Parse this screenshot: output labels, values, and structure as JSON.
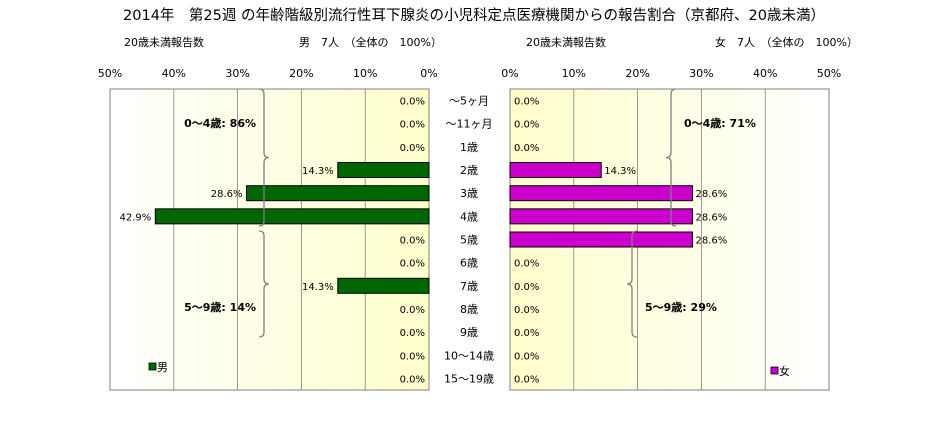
{
  "title": "2014年　第25週 の年齢階級別流行性耳下腺炎の小児科定点医療機関からの報告割合（京都府、20歳未満）",
  "chart_data": [
    {
      "type": "bar",
      "orientation": "horizontal",
      "direction": "right-to-left",
      "subtitle_left": "20歳未満報告数",
      "subtitle_right": "男　7人　（全体の　100%）",
      "xlim": [
        0,
        50
      ],
      "x_ticks": [
        "50%",
        "40%",
        "30%",
        "20%",
        "10%",
        "0%"
      ],
      "categories": [
        "～5ヶ月",
        "～11ヶ月",
        "1歳",
        "2歳",
        "3歳",
        "4歳",
        "5歳",
        "6歳",
        "7歳",
        "8歳",
        "9歳",
        "10～14歳",
        "15～19歳"
      ],
      "series": [
        {
          "name": "男",
          "color": "#006600",
          "values": [
            0,
            0,
            0,
            14.3,
            28.6,
            42.9,
            0,
            0,
            14.3,
            0,
            0,
            0,
            0
          ],
          "labels": [
            "0.0%",
            "0.0%",
            "0.0%",
            "14.3%",
            "28.6%",
            "42.9%",
            "0.0%",
            "0.0%",
            "14.3%",
            "0.0%",
            "0.0%",
            "0.0%",
            "0.0%"
          ]
        }
      ],
      "group_annotations": [
        "0～4歳: 86%",
        "5～9歳: 14%"
      ],
      "legend_position": "bottom-left"
    },
    {
      "type": "bar",
      "orientation": "horizontal",
      "direction": "left-to-right",
      "subtitle_left": "20歳未満報告数",
      "subtitle_right": "女　7人　（全体の　100%）",
      "xlim": [
        0,
        50
      ],
      "x_ticks": [
        "0%",
        "10%",
        "20%",
        "30%",
        "40%",
        "50%"
      ],
      "categories": [
        "～5ヶ月",
        "～11ヶ月",
        "1歳",
        "2歳",
        "3歳",
        "4歳",
        "5歳",
        "6歳",
        "7歳",
        "8歳",
        "9歳",
        "10～14歳",
        "15～19歳"
      ],
      "series": [
        {
          "name": "女",
          "color": "#CC00CC",
          "values": [
            0,
            0,
            0,
            14.3,
            28.6,
            28.6,
            28.6,
            0,
            0,
            0,
            0,
            0,
            0
          ],
          "labels": [
            "0.0%",
            "0.0%",
            "0.0%",
            "14.3%",
            "28.6%",
            "28.6%",
            "28.6%",
            "0.0%",
            "0.0%",
            "0.0%",
            "0.0%",
            "0.0%",
            "0.0%"
          ]
        }
      ],
      "group_annotations": [
        "0～4歳: 71%",
        "5～9歳: 29%"
      ],
      "legend_position": "bottom-right"
    }
  ]
}
